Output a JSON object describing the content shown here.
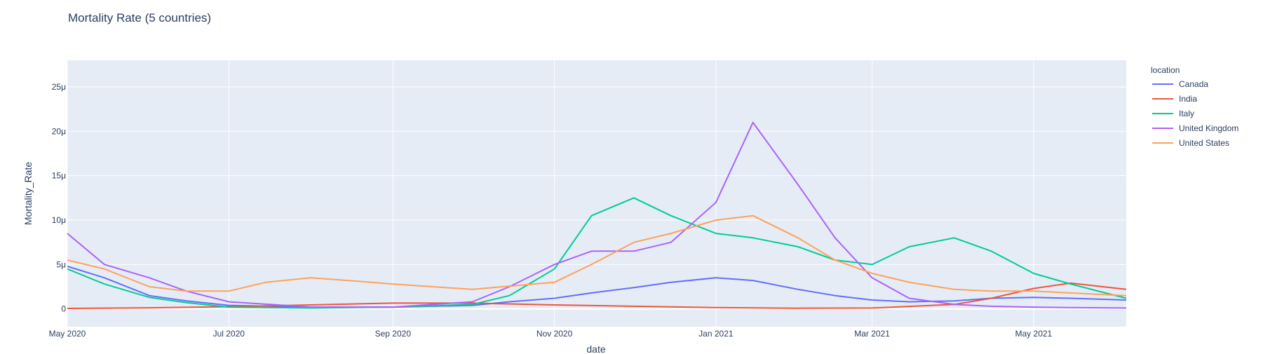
{
  "chart_data": {
    "type": "line",
    "title": "Mortality Rate (5 countries)",
    "xlabel": "date",
    "ylabel": "Mortality_Rate",
    "x_range": [
      "2020-05-01",
      "2021-06-05"
    ],
    "ylim": [
      -2e-06,
      2.8e-05
    ],
    "x_ticks": [
      {
        "date": "2020-05-01",
        "label": "May 2020"
      },
      {
        "date": "2020-07-01",
        "label": "Jul 2020"
      },
      {
        "date": "2020-09-01",
        "label": "Sep 2020"
      },
      {
        "date": "2020-11-01",
        "label": "Nov 2020"
      },
      {
        "date": "2021-01-01",
        "label": "Jan 2021"
      },
      {
        "date": "2021-03-01",
        "label": "Mar 2021"
      },
      {
        "date": "2021-05-01",
        "label": "May 2021"
      }
    ],
    "y_ticks": [
      {
        "value": 0,
        "label": "0"
      },
      {
        "value": 5e-06,
        "label": "5μ"
      },
      {
        "value": 1e-05,
        "label": "10μ"
      },
      {
        "value": 1.5e-05,
        "label": "15μ"
      },
      {
        "value": 2e-05,
        "label": "20μ"
      },
      {
        "value": 2.5e-05,
        "label": "25μ"
      }
    ],
    "grid": true,
    "background_color": "#e5ecf6",
    "legend": {
      "title": "location",
      "placement": "right"
    },
    "series": [
      {
        "name": "Canada",
        "color": "#636efa",
        "points": [
          [
            "2020-05-01",
            4.8e-06
          ],
          [
            "2020-05-15",
            3.5e-06
          ],
          [
            "2020-06-01",
            1.5e-06
          ],
          [
            "2020-06-15",
            9e-07
          ],
          [
            "2020-07-01",
            4e-07
          ],
          [
            "2020-08-01",
            2e-07
          ],
          [
            "2020-09-01",
            2e-07
          ],
          [
            "2020-10-01",
            4e-07
          ],
          [
            "2020-10-15",
            8e-07
          ],
          [
            "2020-11-01",
            1.2e-06
          ],
          [
            "2020-11-15",
            1.8e-06
          ],
          [
            "2020-12-01",
            2.4e-06
          ],
          [
            "2020-12-15",
            3e-06
          ],
          [
            "2021-01-01",
            3.5e-06
          ],
          [
            "2021-01-15",
            3.2e-06
          ],
          [
            "2021-02-01",
            2.2e-06
          ],
          [
            "2021-02-15",
            1.5e-06
          ],
          [
            "2021-03-01",
            1e-06
          ],
          [
            "2021-03-15",
            8e-07
          ],
          [
            "2021-04-01",
            9e-07
          ],
          [
            "2021-04-15",
            1.2e-06
          ],
          [
            "2021-05-01",
            1.3e-06
          ],
          [
            "2021-05-15",
            1.2e-06
          ],
          [
            "2021-06-05",
            1e-06
          ]
        ]
      },
      {
        "name": "India",
        "color": "#EF553B",
        "points": [
          [
            "2020-05-01",
            5e-08
          ],
          [
            "2020-06-01",
            1.2e-07
          ],
          [
            "2020-07-01",
            2.5e-07
          ],
          [
            "2020-08-01",
            4.5e-07
          ],
          [
            "2020-09-01",
            6.5e-07
          ],
          [
            "2020-10-01",
            6.5e-07
          ],
          [
            "2020-11-01",
            4.5e-07
          ],
          [
            "2020-12-01",
            3e-07
          ],
          [
            "2021-01-01",
            1.5e-07
          ],
          [
            "2021-02-01",
            8e-08
          ],
          [
            "2021-03-01",
            1e-07
          ],
          [
            "2021-04-01",
            5e-07
          ],
          [
            "2021-04-15",
            1.2e-06
          ],
          [
            "2021-05-01",
            2.3e-06
          ],
          [
            "2021-05-15",
            2.9e-06
          ],
          [
            "2021-06-05",
            2.2e-06
          ]
        ]
      },
      {
        "name": "Italy",
        "color": "#00cc96",
        "points": [
          [
            "2020-05-01",
            4.5e-06
          ],
          [
            "2020-05-15",
            2.8e-06
          ],
          [
            "2020-06-01",
            1.3e-06
          ],
          [
            "2020-06-15",
            7e-07
          ],
          [
            "2020-07-01",
            2e-07
          ],
          [
            "2020-08-01",
            1e-07
          ],
          [
            "2020-09-01",
            2e-07
          ],
          [
            "2020-10-01",
            5e-07
          ],
          [
            "2020-10-15",
            1.5e-06
          ],
          [
            "2020-11-01",
            4.5e-06
          ],
          [
            "2020-11-15",
            1.05e-05
          ],
          [
            "2020-12-01",
            1.25e-05
          ],
          [
            "2020-12-15",
            1.05e-05
          ],
          [
            "2021-01-01",
            8.5e-06
          ],
          [
            "2021-01-15",
            8e-06
          ],
          [
            "2021-02-01",
            7e-06
          ],
          [
            "2021-02-15",
            5.5e-06
          ],
          [
            "2021-03-01",
            5e-06
          ],
          [
            "2021-03-15",
            7e-06
          ],
          [
            "2021-04-01",
            8e-06
          ],
          [
            "2021-04-15",
            6.5e-06
          ],
          [
            "2021-05-01",
            4e-06
          ],
          [
            "2021-05-15",
            2.8e-06
          ],
          [
            "2021-06-05",
            1.2e-06
          ]
        ]
      },
      {
        "name": "United Kingdom",
        "color": "#ab63fa",
        "points": [
          [
            "2020-05-01",
            8.5e-06
          ],
          [
            "2020-05-15",
            5e-06
          ],
          [
            "2020-06-01",
            3.5e-06
          ],
          [
            "2020-06-15",
            2e-06
          ],
          [
            "2020-07-01",
            8e-07
          ],
          [
            "2020-08-01",
            2e-07
          ],
          [
            "2020-09-01",
            2e-07
          ],
          [
            "2020-10-01",
            8e-07
          ],
          [
            "2020-10-15",
            2.5e-06
          ],
          [
            "2020-11-01",
            5e-06
          ],
          [
            "2020-11-15",
            6.5e-06
          ],
          [
            "2020-12-01",
            6.5e-06
          ],
          [
            "2020-12-15",
            7.5e-06
          ],
          [
            "2021-01-01",
            1.2e-05
          ],
          [
            "2021-01-15",
            2.1e-05
          ],
          [
            "2021-02-01",
            1.4e-05
          ],
          [
            "2021-02-15",
            8e-06
          ],
          [
            "2021-03-01",
            3.5e-06
          ],
          [
            "2021-03-15",
            1.2e-06
          ],
          [
            "2021-04-01",
            5e-07
          ],
          [
            "2021-04-15",
            3e-07
          ],
          [
            "2021-05-01",
            2e-07
          ],
          [
            "2021-05-15",
            1.5e-07
          ],
          [
            "2021-06-05",
            1e-07
          ]
        ]
      },
      {
        "name": "United States",
        "color": "#FFA15A",
        "points": [
          [
            "2020-05-01",
            5.5e-06
          ],
          [
            "2020-05-15",
            4.5e-06
          ],
          [
            "2020-06-01",
            2.5e-06
          ],
          [
            "2020-06-15",
            2e-06
          ],
          [
            "2020-07-01",
            2e-06
          ],
          [
            "2020-07-15",
            3e-06
          ],
          [
            "2020-08-01",
            3.5e-06
          ],
          [
            "2020-08-15",
            3.2e-06
          ],
          [
            "2020-09-01",
            2.8e-06
          ],
          [
            "2020-10-01",
            2.2e-06
          ],
          [
            "2020-11-01",
            3e-06
          ],
          [
            "2020-11-15",
            5e-06
          ],
          [
            "2020-12-01",
            7.5e-06
          ],
          [
            "2020-12-15",
            8.5e-06
          ],
          [
            "2021-01-01",
            1e-05
          ],
          [
            "2021-01-15",
            1.05e-05
          ],
          [
            "2021-02-01",
            8e-06
          ],
          [
            "2021-02-15",
            5.5e-06
          ],
          [
            "2021-03-01",
            4e-06
          ],
          [
            "2021-03-15",
            3e-06
          ],
          [
            "2021-04-01",
            2.2e-06
          ],
          [
            "2021-04-15",
            2e-06
          ],
          [
            "2021-05-01",
            2e-06
          ],
          [
            "2021-05-15",
            1.8e-06
          ],
          [
            "2021-06-05",
            1.5e-06
          ]
        ]
      }
    ]
  }
}
